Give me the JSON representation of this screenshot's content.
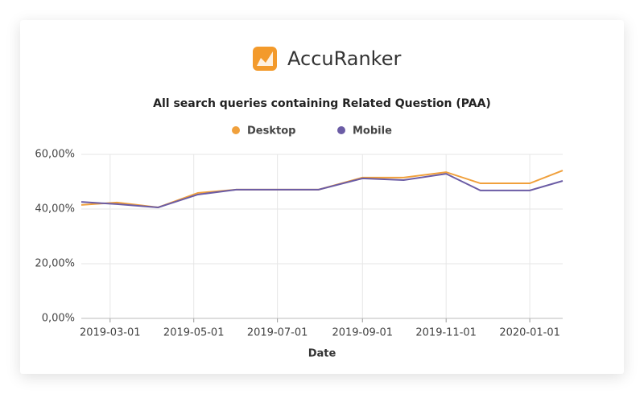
{
  "brand": "AccuRanker",
  "chart_data": {
    "type": "line",
    "title": "All search queries containing Related Question (PAA)",
    "x_label": "Date",
    "x": [
      "2019-02-08",
      "2019-03-06",
      "2019-04-05",
      "2019-05-04",
      "2019-06-01",
      "2019-07-01",
      "2019-07-31",
      "2019-09-01",
      "2019-10-01",
      "2019-11-01",
      "2019-11-26",
      "2020-01-01",
      "2020-01-25"
    ],
    "series": [
      {
        "name": "Desktop",
        "color": "#f0a03c",
        "values": [
          41.5,
          42.4,
          40.6,
          45.9,
          47.1,
          47.1,
          47.1,
          51.5,
          51.5,
          53.5,
          49.4,
          49.4,
          54.1
        ]
      },
      {
        "name": "Mobile",
        "color": "#6b5ca5",
        "values": [
          42.6,
          41.8,
          40.6,
          45.3,
          47.1,
          47.1,
          47.1,
          51.2,
          50.6,
          52.9,
          46.8,
          46.8,
          50.3
        ]
      }
    ],
    "xlim": [
      "2019-02-08",
      "2020-01-25"
    ],
    "xticks": [
      "2019-03-01",
      "2019-05-01",
      "2019-07-01",
      "2019-09-01",
      "2019-11-01",
      "2020-01-01"
    ],
    "ylim": [
      0,
      60
    ],
    "yticks": [
      {
        "value": 0,
        "label": "0,00%"
      },
      {
        "value": 20,
        "label": "20,00%"
      },
      {
        "value": 40,
        "label": "40,00%"
      },
      {
        "value": 60,
        "label": "60,00%"
      }
    ],
    "grid": true,
    "legend": "top"
  }
}
